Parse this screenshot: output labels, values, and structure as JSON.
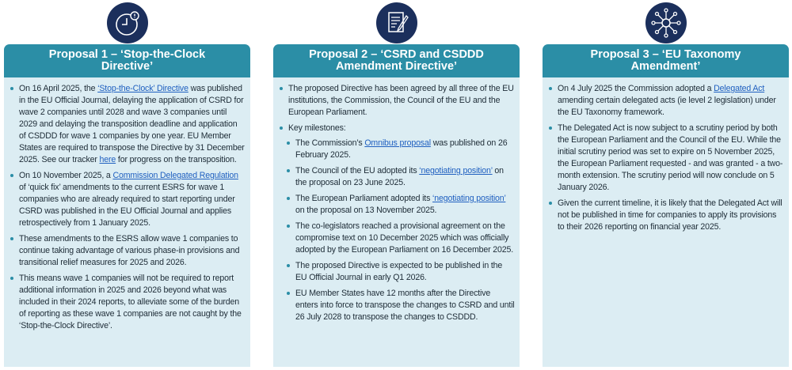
{
  "panels": [
    {
      "title": "Proposal 1 – ‘Stop-the-Clock Directive’",
      "bullets": [
        {
          "segments": [
            {
              "text": "On 16 April 2025, the "
            },
            {
              "text": "‘Stop-the-Clock’ Directive",
              "link": true
            },
            {
              "text": " was published in the EU Official Journal, delaying the application of CSRD for wave 2 companies until 2028 and wave 3 companies until 2029 and delaying the transposition deadline and application of CSDDD for wave 1 companies by one year. EU Member States are required to transpose the Directive by 31 December 2025. See our tracker "
            },
            {
              "text": "here",
              "link": true
            },
            {
              "text": " for progress on the transposition."
            }
          ]
        },
        {
          "segments": [
            {
              "text": "On 10 November 2025, a "
            },
            {
              "text": "Commission Delegated Regulation",
              "link": true
            },
            {
              "text": " of ‘quick fix’ amendments to the current ESRS for wave 1 companies who are already required to start reporting under CSRD was published in the EU Official Journal and applies retrospectively from 1 January 2025."
            }
          ]
        },
        {
          "segments": [
            {
              "text": "These amendments to the ESRS allow wave 1 companies to continue taking advantage of various phase-in provisions and transitional relief measures for 2025 and 2026."
            }
          ]
        },
        {
          "segments": [
            {
              "text": "This means wave 1 companies will not be required to report additional information in 2025 and 2026 beyond what was included in their 2024 reports, to alleviate some of the burden of reporting as these wave 1 companies are not caught by the ‘Stop-the-Clock Directive’."
            }
          ]
        }
      ]
    },
    {
      "title": "Proposal 2 – ‘CSRD and CSDDD Amendment Directive’",
      "bullets": [
        {
          "segments": [
            {
              "text": "The proposed Directive has been agreed by all three of the EU institutions, the Commission, the Council of the EU and the European Parliament."
            }
          ]
        },
        {
          "segments": [
            {
              "text": "Key milestones:"
            }
          ],
          "subitems": [
            {
              "segments": [
                {
                  "text": "The Commission’s "
                },
                {
                  "text": "Omnibus proposal",
                  "link": true
                },
                {
                  "text": " was published on 26 February 2025."
                }
              ]
            },
            {
              "segments": [
                {
                  "text": "The Council of the EU adopted its "
                },
                {
                  "text": "‘negotiating position’",
                  "link": true
                },
                {
                  "text": " on the proposal on 23 June 2025."
                }
              ]
            },
            {
              "segments": [
                {
                  "text": "The European Parliament adopted its "
                },
                {
                  "text": "‘negotiating position’",
                  "link": true
                },
                {
                  "text": " on the proposal on 13 November 2025."
                }
              ]
            },
            {
              "segments": [
                {
                  "text": "The co-legislators reached a provisional agreement on the compromise text on 10 December 2025 which was officially adopted by the European Parliament on 16 December 2025."
                }
              ]
            },
            {
              "segments": [
                {
                  "text": "The proposed Directive is expected to be published in the EU Official Journal in early Q1 2026."
                }
              ]
            },
            {
              "segments": [
                {
                  "text": "EU Member States have 12 months after the Directive enters into force to transpose the changes to CSRD and until 26 July 2028 to transpose the changes to CSDDD."
                }
              ]
            }
          ]
        }
      ]
    },
    {
      "title": "Proposal 3 – ‘EU Taxonomy Amendment’",
      "bullets": [
        {
          "segments": [
            {
              "text": "On 4 July 2025 the Commission adopted a "
            },
            {
              "text": "Delegated Act",
              "link": true
            },
            {
              "text": " amending certain delegated acts (ie level 2 legislation) under the EU Taxonomy framework."
            }
          ]
        },
        {
          "segments": [
            {
              "text": "The Delegated Act is now subject to a scrutiny period by both the European Parliament and the Council of the EU. While the initial scrutiny period was set to expire on 5 November 2025, the European Parliament requested - and was granted - a two-month extension. The scrutiny period will now conclude on 5 January 2026."
            }
          ]
        },
        {
          "segments": [
            {
              "text": "Given the current timeline, it is likely that the Delegated Act will not be published in time for companies to apply its provisions to their 2026 reporting on financial year 2025."
            }
          ]
        }
      ]
    }
  ]
}
